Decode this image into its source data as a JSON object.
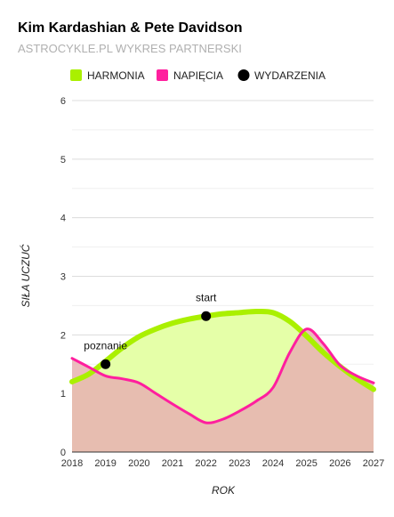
{
  "chart_data": {
    "type": "line",
    "title": "Kim Kardashian & Pete Davidson",
    "subtitle": "ASTROCYKLE.PL WYKRES PARTNERSKI",
    "xlabel": "ROK",
    "ylabel": "SIŁA UCZUĆ",
    "xlim": [
      2018,
      2027
    ],
    "ylim": [
      0,
      6
    ],
    "x_ticks": [
      "2018",
      "2019",
      "2020",
      "2021",
      "2022",
      "2023",
      "2024",
      "2025",
      "2026",
      "2027"
    ],
    "y_ticks": [
      "0",
      "1",
      "2",
      "3",
      "4",
      "5",
      "6"
    ],
    "grid": true,
    "legend": "top",
    "series": [
      {
        "name": "HARMONIA",
        "color": "#aaf000",
        "fill": "#e5ffa8",
        "x": [
          2018,
          2018.5,
          2019,
          2019.5,
          2020,
          2020.5,
          2021,
          2021.5,
          2022,
          2022.5,
          2023,
          2023.5,
          2024,
          2024.5,
          2025,
          2025.5,
          2026,
          2026.5,
          2027
        ],
        "values": [
          1.2,
          1.33,
          1.55,
          1.78,
          1.97,
          2.1,
          2.2,
          2.27,
          2.32,
          2.36,
          2.38,
          2.4,
          2.38,
          2.23,
          1.98,
          1.7,
          1.46,
          1.25,
          1.07
        ]
      },
      {
        "name": "NAPIĘCIA",
        "color": "#ff1f9e",
        "fill": "#e7b1b1",
        "x": [
          2018,
          2018.5,
          2019,
          2019.5,
          2020,
          2020.5,
          2021,
          2021.5,
          2022,
          2022.5,
          2023,
          2023.5,
          2024,
          2024.5,
          2025,
          2025.5,
          2026,
          2026.5,
          2027
        ],
        "values": [
          1.6,
          1.45,
          1.3,
          1.25,
          1.18,
          1.0,
          0.82,
          0.65,
          0.5,
          0.56,
          0.7,
          0.87,
          1.1,
          1.7,
          2.1,
          1.85,
          1.48,
          1.3,
          1.18
        ]
      }
    ],
    "events": {
      "name": "WYDARZENIA",
      "color": "#000000",
      "points": [
        {
          "label": "poznanie",
          "x": 2019,
          "y": 1.5
        },
        {
          "label": "start",
          "x": 2022,
          "y": 2.32
        }
      ]
    }
  }
}
